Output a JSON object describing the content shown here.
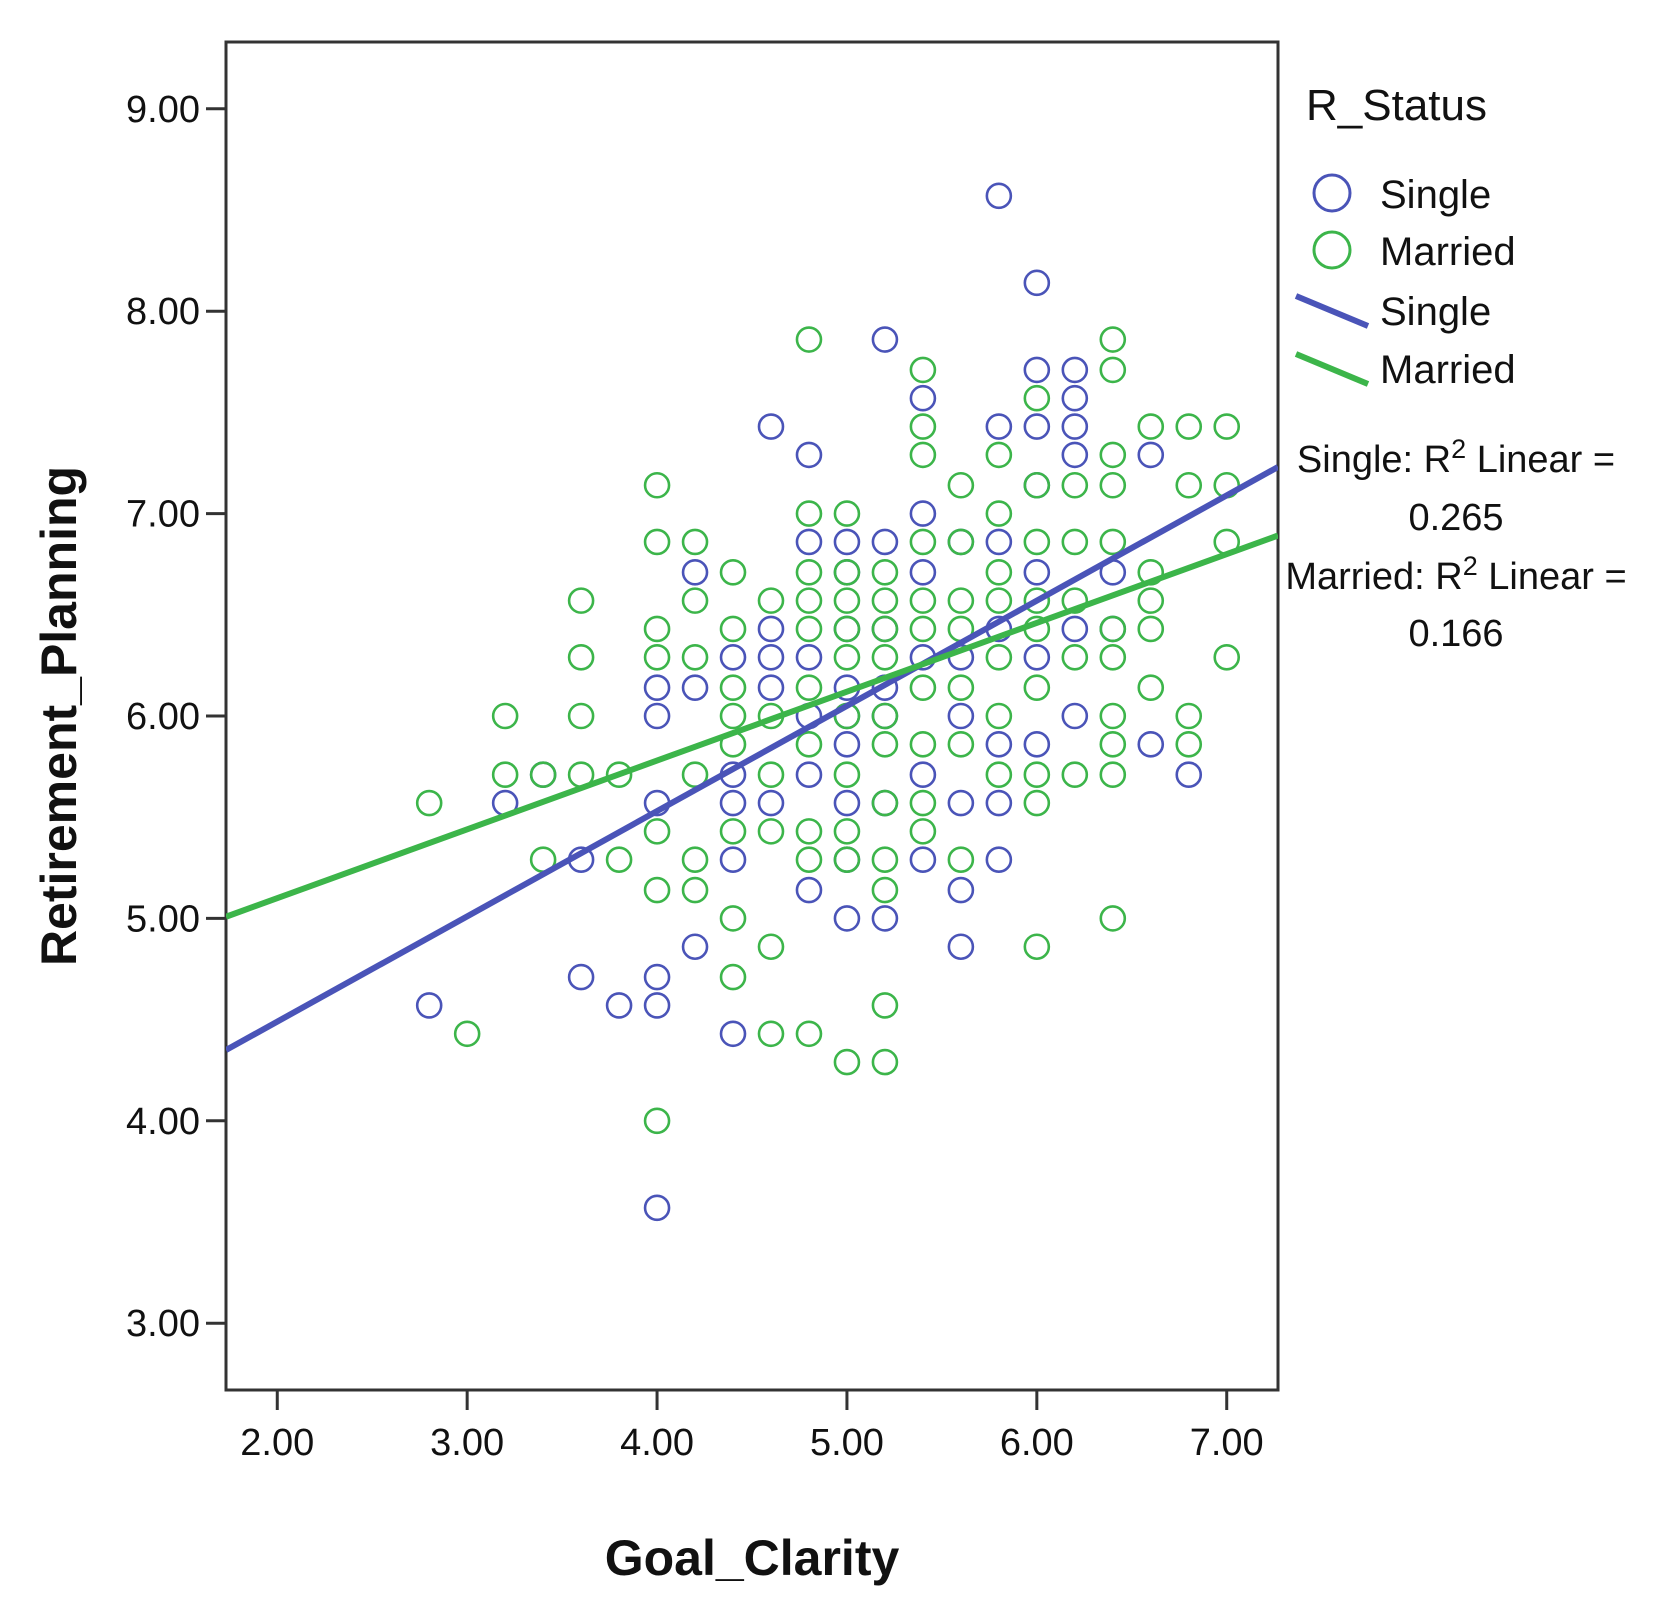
{
  "chart_data": {
    "type": "scatter",
    "xlabel": "Goal_Clarity",
    "ylabel": "Retirement_Planning",
    "xlim": [
      1.73,
      7.27
    ],
    "ylim": [
      2.67,
      9.33
    ],
    "xticks": [
      "2.00",
      "3.00",
      "4.00",
      "5.00",
      "6.00",
      "7.00"
    ],
    "yticks": [
      "3.00",
      "4.00",
      "5.00",
      "6.00",
      "7.00",
      "8.00",
      "9.00"
    ],
    "grid": false,
    "legend": {
      "title": "R_Status",
      "position": "right",
      "marker_entries": [
        "Single",
        "Married"
      ],
      "line_entries": [
        "Single",
        "Married"
      ]
    },
    "annotations": [
      {
        "series": "Single",
        "label": "Single: R",
        "sup": "2",
        "suffix": " Linear =",
        "value": "0.265"
      },
      {
        "series": "Married",
        "label": "Married: R",
        "sup": "2",
        "suffix": " Linear =",
        "value": "0.166"
      }
    ],
    "series": [
      {
        "name": "Single",
        "color": "#4a54b8",
        "fit": {
          "intercept": 3.45,
          "slope": 0.52
        },
        "points": [
          [
            2.8,
            4.57
          ],
          [
            3.2,
            5.57
          ],
          [
            3.4,
            5.71
          ],
          [
            3.6,
            5.29
          ],
          [
            3.6,
            4.71
          ],
          [
            3.8,
            4.57
          ],
          [
            4.0,
            6.0
          ],
          [
            4.0,
            5.57
          ],
          [
            4.0,
            4.71
          ],
          [
            4.0,
            4.57
          ],
          [
            4.0,
            3.57
          ],
          [
            4.0,
            6.14
          ],
          [
            4.2,
            6.71
          ],
          [
            4.2,
            6.14
          ],
          [
            4.2,
            4.86
          ],
          [
            4.4,
            6.29
          ],
          [
            4.4,
            5.57
          ],
          [
            4.4,
            5.29
          ],
          [
            4.4,
            4.43
          ],
          [
            4.4,
            5.71
          ],
          [
            4.6,
            7.43
          ],
          [
            4.6,
            6.43
          ],
          [
            4.6,
            6.14
          ],
          [
            4.6,
            5.57
          ],
          [
            4.6,
            6.29
          ],
          [
            4.8,
            7.29
          ],
          [
            4.8,
            6.86
          ],
          [
            4.8,
            6.29
          ],
          [
            4.8,
            5.71
          ],
          [
            4.8,
            5.14
          ],
          [
            4.8,
            6.0
          ],
          [
            5.0,
            6.86
          ],
          [
            5.0,
            6.71
          ],
          [
            5.0,
            6.43
          ],
          [
            5.0,
            6.14
          ],
          [
            5.0,
            5.86
          ],
          [
            5.0,
            5.57
          ],
          [
            5.0,
            5.29
          ],
          [
            5.0,
            5.0
          ],
          [
            5.0,
            6.0
          ],
          [
            5.2,
            7.86
          ],
          [
            5.2,
            6.86
          ],
          [
            5.2,
            6.43
          ],
          [
            5.2,
            6.0
          ],
          [
            5.2,
            5.57
          ],
          [
            5.2,
            5.0
          ],
          [
            5.2,
            6.14
          ],
          [
            5.4,
            7.57
          ],
          [
            5.4,
            7.0
          ],
          [
            5.4,
            6.71
          ],
          [
            5.4,
            6.29
          ],
          [
            5.4,
            5.71
          ],
          [
            5.4,
            5.29
          ],
          [
            5.6,
            6.86
          ],
          [
            5.6,
            6.29
          ],
          [
            5.6,
            6.0
          ],
          [
            5.6,
            5.57
          ],
          [
            5.6,
            5.14
          ],
          [
            5.6,
            4.86
          ],
          [
            5.8,
            8.57
          ],
          [
            5.8,
            7.43
          ],
          [
            5.8,
            6.86
          ],
          [
            5.8,
            6.43
          ],
          [
            5.8,
            5.86
          ],
          [
            5.8,
            5.57
          ],
          [
            5.8,
            5.29
          ],
          [
            6.0,
            8.14
          ],
          [
            6.0,
            7.71
          ],
          [
            6.0,
            7.43
          ],
          [
            6.0,
            7.14
          ],
          [
            6.0,
            6.71
          ],
          [
            6.0,
            6.29
          ],
          [
            6.0,
            5.86
          ],
          [
            6.2,
            7.71
          ],
          [
            6.2,
            7.57
          ],
          [
            6.2,
            7.43
          ],
          [
            6.2,
            7.29
          ],
          [
            6.2,
            6.43
          ],
          [
            6.2,
            6.0
          ],
          [
            6.4,
            6.71
          ],
          [
            6.4,
            6.43
          ],
          [
            6.6,
            7.29
          ],
          [
            6.6,
            5.86
          ],
          [
            6.8,
            5.71
          ]
        ]
      },
      {
        "name": "Married",
        "color": "#3cb54a",
        "fit": {
          "intercept": 4.42,
          "slope": 0.34
        },
        "points": [
          [
            2.8,
            5.57
          ],
          [
            3.0,
            4.43
          ],
          [
            3.2,
            6.0
          ],
          [
            3.2,
            5.71
          ],
          [
            3.4,
            5.71
          ],
          [
            3.4,
            5.29
          ],
          [
            3.6,
            6.57
          ],
          [
            3.6,
            6.29
          ],
          [
            3.6,
            6.0
          ],
          [
            3.6,
            5.71
          ],
          [
            3.8,
            5.71
          ],
          [
            3.8,
            5.29
          ],
          [
            4.0,
            7.14
          ],
          [
            4.0,
            6.86
          ],
          [
            4.0,
            6.43
          ],
          [
            4.0,
            6.29
          ],
          [
            4.0,
            5.43
          ],
          [
            4.0,
            5.14
          ],
          [
            4.0,
            4.0
          ],
          [
            4.2,
            6.86
          ],
          [
            4.2,
            6.57
          ],
          [
            4.2,
            6.29
          ],
          [
            4.2,
            5.71
          ],
          [
            4.2,
            5.29
          ],
          [
            4.2,
            5.14
          ],
          [
            4.4,
            6.71
          ],
          [
            4.4,
            6.43
          ],
          [
            4.4,
            6.14
          ],
          [
            4.4,
            5.86
          ],
          [
            4.4,
            5.43
          ],
          [
            4.4,
            5.0
          ],
          [
            4.4,
            4.71
          ],
          [
            4.4,
            6.0
          ],
          [
            4.6,
            6.57
          ],
          [
            4.6,
            6.0
          ],
          [
            4.6,
            5.71
          ],
          [
            4.6,
            5.43
          ],
          [
            4.6,
            4.86
          ],
          [
            4.6,
            4.43
          ],
          [
            4.8,
            7.86
          ],
          [
            4.8,
            7.0
          ],
          [
            4.8,
            6.71
          ],
          [
            4.8,
            6.57
          ],
          [
            4.8,
            6.43
          ],
          [
            4.8,
            6.14
          ],
          [
            4.8,
            5.86
          ],
          [
            4.8,
            5.43
          ],
          [
            4.8,
            5.29
          ],
          [
            4.8,
            4.43
          ],
          [
            5.0,
            7.0
          ],
          [
            5.0,
            6.71
          ],
          [
            5.0,
            6.57
          ],
          [
            5.0,
            6.43
          ],
          [
            5.0,
            6.29
          ],
          [
            5.0,
            6.0
          ],
          [
            5.0,
            5.71
          ],
          [
            5.0,
            5.43
          ],
          [
            5.0,
            5.29
          ],
          [
            5.0,
            4.29
          ],
          [
            5.2,
            6.71
          ],
          [
            5.2,
            6.57
          ],
          [
            5.2,
            6.43
          ],
          [
            5.2,
            6.29
          ],
          [
            5.2,
            6.0
          ],
          [
            5.2,
            5.86
          ],
          [
            5.2,
            5.57
          ],
          [
            5.2,
            5.29
          ],
          [
            5.2,
            5.14
          ],
          [
            5.2,
            4.57
          ],
          [
            5.2,
            4.29
          ],
          [
            5.4,
            7.71
          ],
          [
            5.4,
            7.43
          ],
          [
            5.4,
            7.29
          ],
          [
            5.4,
            6.86
          ],
          [
            5.4,
            6.57
          ],
          [
            5.4,
            6.43
          ],
          [
            5.4,
            6.14
          ],
          [
            5.4,
            5.86
          ],
          [
            5.4,
            5.57
          ],
          [
            5.4,
            5.43
          ],
          [
            5.6,
            7.14
          ],
          [
            5.6,
            6.86
          ],
          [
            5.6,
            6.57
          ],
          [
            5.6,
            6.43
          ],
          [
            5.6,
            6.14
          ],
          [
            5.6,
            5.86
          ],
          [
            5.6,
            5.29
          ],
          [
            5.8,
            7.29
          ],
          [
            5.8,
            7.0
          ],
          [
            5.8,
            6.71
          ],
          [
            5.8,
            6.57
          ],
          [
            5.8,
            6.29
          ],
          [
            5.8,
            6.0
          ],
          [
            5.8,
            5.71
          ],
          [
            6.0,
            7.57
          ],
          [
            6.0,
            7.14
          ],
          [
            6.0,
            6.86
          ],
          [
            6.0,
            6.57
          ],
          [
            6.0,
            6.43
          ],
          [
            6.0,
            6.14
          ],
          [
            6.0,
            5.71
          ],
          [
            6.0,
            5.57
          ],
          [
            6.0,
            4.86
          ],
          [
            6.2,
            7.14
          ],
          [
            6.2,
            6.86
          ],
          [
            6.2,
            6.57
          ],
          [
            6.2,
            6.29
          ],
          [
            6.2,
            5.71
          ],
          [
            6.4,
            7.86
          ],
          [
            6.4,
            7.71
          ],
          [
            6.4,
            7.29
          ],
          [
            6.4,
            7.14
          ],
          [
            6.4,
            6.86
          ],
          [
            6.4,
            6.43
          ],
          [
            6.4,
            6.29
          ],
          [
            6.4,
            6.0
          ],
          [
            6.4,
            5.86
          ],
          [
            6.4,
            5.71
          ],
          [
            6.4,
            5.0
          ],
          [
            6.6,
            7.43
          ],
          [
            6.6,
            6.71
          ],
          [
            6.6,
            6.57
          ],
          [
            6.6,
            6.43
          ],
          [
            6.6,
            6.14
          ],
          [
            6.8,
            7.43
          ],
          [
            6.8,
            7.14
          ],
          [
            6.8,
            6.0
          ],
          [
            6.8,
            5.86
          ],
          [
            7.0,
            7.43
          ],
          [
            7.0,
            7.14
          ],
          [
            7.0,
            6.86
          ],
          [
            7.0,
            6.29
          ]
        ]
      }
    ]
  }
}
